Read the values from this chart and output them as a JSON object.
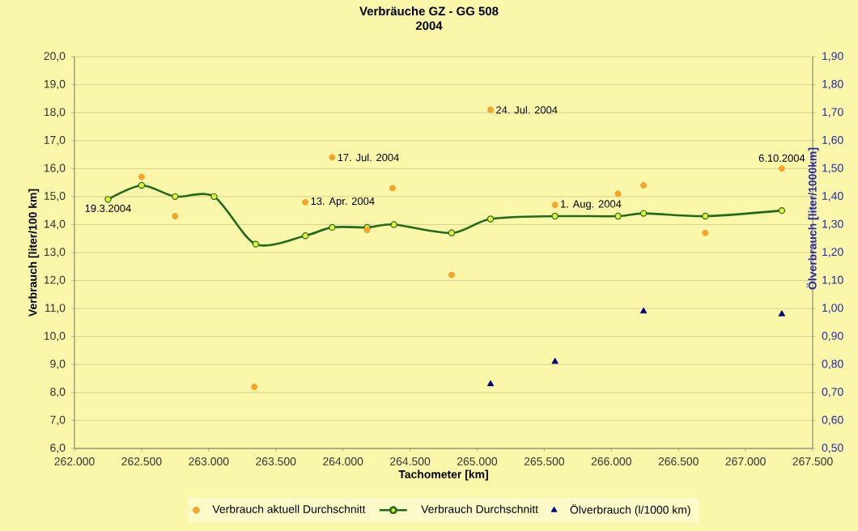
{
  "chart_data": {
    "type": "line",
    "title": "Verbräuche GZ - GG 508",
    "subtitle": "2004",
    "xlabel": "Tachometer [km]",
    "ylabel": "Verbrauch [liter/100 km]",
    "y2label": "Ölverbrauch [liter/1000km]",
    "xlim": [
      262000,
      267500
    ],
    "xticks": [
      {
        "value": 262000,
        "label": "262.000"
      },
      {
        "value": 262500,
        "label": "262.500"
      },
      {
        "value": 263000,
        "label": "263.000"
      },
      {
        "value": 263500,
        "label": "263.500"
      },
      {
        "value": 264000,
        "label": "264.000"
      },
      {
        "value": 264500,
        "label": "264.500"
      },
      {
        "value": 265000,
        "label": "265.000"
      },
      {
        "value": 265500,
        "label": "265.500"
      },
      {
        "value": 266000,
        "label": "266.000"
      },
      {
        "value": 266500,
        "label": "266.500"
      },
      {
        "value": 267000,
        "label": "267.000"
      },
      {
        "value": 267500,
        "label": "267.500"
      }
    ],
    "ylim": [
      6,
      20
    ],
    "yticks": [
      {
        "value": 6,
        "label": "6,0"
      },
      {
        "value": 7,
        "label": "7,0"
      },
      {
        "value": 8,
        "label": "8,0"
      },
      {
        "value": 9,
        "label": "9,0"
      },
      {
        "value": 10,
        "label": "10,0"
      },
      {
        "value": 11,
        "label": "11,0"
      },
      {
        "value": 12,
        "label": "12,0"
      },
      {
        "value": 13,
        "label": "13,0"
      },
      {
        "value": 14,
        "label": "14,0"
      },
      {
        "value": 15,
        "label": "15,0"
      },
      {
        "value": 16,
        "label": "16,0"
      },
      {
        "value": 17,
        "label": "17,0"
      },
      {
        "value": 18,
        "label": "18,0"
      },
      {
        "value": 19,
        "label": "19,0"
      },
      {
        "value": 20,
        "label": "20,0"
      }
    ],
    "y2lim": [
      0.5,
      1.9
    ],
    "y2ticks": [
      {
        "value": 0.5,
        "label": "0,50"
      },
      {
        "value": 0.6,
        "label": "0,60"
      },
      {
        "value": 0.7,
        "label": "0,70"
      },
      {
        "value": 0.8,
        "label": "0,80"
      },
      {
        "value": 0.9,
        "label": "0,90"
      },
      {
        "value": 1.0,
        "label": "1,00"
      },
      {
        "value": 1.1,
        "label": "1,10"
      },
      {
        "value": 1.2,
        "label": "1,20"
      },
      {
        "value": 1.3,
        "label": "1,30"
      },
      {
        "value": 1.4,
        "label": "1,40"
      },
      {
        "value": 1.5,
        "label": "1,50"
      },
      {
        "value": 1.6,
        "label": "1,60"
      },
      {
        "value": 1.7,
        "label": "1,70"
      },
      {
        "value": 1.8,
        "label": "1,80"
      },
      {
        "value": 1.9,
        "label": "1,90"
      }
    ],
    "grid": "y",
    "legend": "bottom",
    "series": [
      {
        "name": "Verbrauch aktuell Durchschnitt",
        "type": "scatter",
        "marker": "circle",
        "color": "#f2a52a",
        "x": [
          262500,
          262750,
          263340,
          263720,
          263920,
          264180,
          264370,
          264810,
          265100,
          265580,
          266050,
          266240,
          266700,
          267270
        ],
        "values": [
          15.7,
          14.3,
          8.2,
          14.8,
          16.4,
          13.8,
          15.3,
          12.2,
          18.1,
          14.7,
          15.1,
          15.4,
          13.7,
          16.0
        ]
      },
      {
        "name": "Verbrauch Durchschnitt",
        "marker": "circle",
        "color": "#1f6b1a",
        "x": [
          262250,
          262500,
          262750,
          263040,
          263350,
          263720,
          263920,
          264180,
          264380,
          264810,
          265100,
          265580,
          266050,
          266240,
          266700,
          267270
        ],
        "values": [
          14.9,
          15.4,
          15.0,
          15.0,
          13.3,
          13.6,
          13.9,
          13.9,
          14.0,
          13.7,
          14.2,
          14.3,
          14.3,
          14.4,
          14.3,
          14.5
        ]
      },
      {
        "name": "Ölverbrauch (l/1000 km)",
        "type": "scatter",
        "marker": "triangle",
        "axis": "y2",
        "color": "#000080",
        "x": [
          265100,
          265580,
          266240,
          267270
        ],
        "values": [
          0.73,
          0.81,
          0.99,
          0.98
        ]
      }
    ],
    "annotations": [
      {
        "text": "19.3.2004",
        "x": 262250,
        "y": 14.9
      },
      {
        "text": "13. Apr. 2004",
        "x": 263720,
        "y": 14.8
      },
      {
        "text": "17. Jul. 2004",
        "x": 263920,
        "y": 16.4
      },
      {
        "text": "24. Jul. 2004",
        "x": 265100,
        "y": 18.1
      },
      {
        "text": "1. Aug. 2004",
        "x": 265580,
        "y": 14.7
      },
      {
        "text": "6.10.2004",
        "x": 267270,
        "y": 16.0
      }
    ]
  }
}
